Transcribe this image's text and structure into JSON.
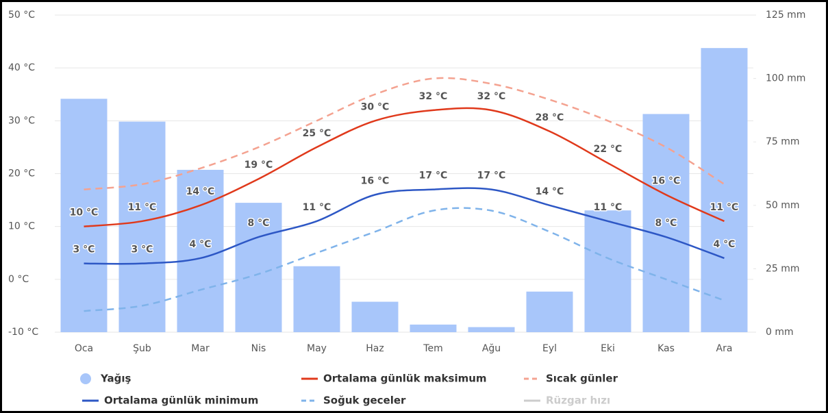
{
  "chart_data": {
    "type": "combo",
    "categories": [
      "Oca",
      "Şub",
      "Mar",
      "Nis",
      "May",
      "Haz",
      "Tem",
      "Ağu",
      "Eyl",
      "Eki",
      "Kas",
      "Ara"
    ],
    "ylim": [
      -10,
      50
    ],
    "yticks": [
      {
        "value": -10,
        "label": "-10 °C"
      },
      {
        "value": 0,
        "label": "0 °C"
      },
      {
        "value": 10,
        "label": "10 °C"
      },
      {
        "value": 20,
        "label": "20 °C"
      },
      {
        "value": 30,
        "label": "30 °C"
      },
      {
        "value": 40,
        "label": "40 °C"
      },
      {
        "value": 50,
        "label": "50 °C"
      }
    ],
    "y2lim": [
      0,
      125
    ],
    "y2ticks": [
      {
        "value": 0,
        "label": "0 mm"
      },
      {
        "value": 25,
        "label": "25 mm"
      },
      {
        "value": 50,
        "label": "50 mm"
      },
      {
        "value": 75,
        "label": "75 mm"
      },
      {
        "value": 100,
        "label": "100 mm"
      },
      {
        "value": 125,
        "label": "125 mm"
      }
    ],
    "grid": true,
    "series": [
      {
        "name": "Yağış",
        "type": "bar",
        "axis": "y2",
        "color": "#a8c6fa",
        "values": [
          92,
          83,
          64,
          51,
          26,
          12,
          3,
          2,
          16,
          48,
          86,
          112
        ]
      },
      {
        "name": "Ortalama günlük maksimum",
        "type": "line",
        "color": "#e0391b",
        "values": [
          10,
          11,
          14,
          19,
          25,
          30,
          32,
          32,
          28,
          22,
          16,
          11
        ],
        "value_labels": [
          "10 °C",
          "11 °C",
          "14 °C",
          "19 °C",
          "25 °C",
          "30 °C",
          "32 °C",
          "32 °C",
          "28 °C",
          "22 °C",
          "16 °C",
          "11 °C"
        ],
        "label_color": "#9b2a10"
      },
      {
        "name": "Sıcak günler",
        "type": "line",
        "dashed": true,
        "color": "#f4a290",
        "values": [
          17,
          18,
          21,
          25,
          30,
          35,
          38,
          37,
          34,
          30,
          25,
          18
        ]
      },
      {
        "name": "Ortalama günlük minimum",
        "type": "line",
        "color": "#2d57c5",
        "values": [
          3,
          3,
          4,
          8,
          11,
          16,
          17,
          17,
          14,
          11,
          8,
          4
        ],
        "value_labels": [
          "3 °C",
          "3 °C",
          "4 °C",
          "8 °C",
          "11 °C",
          "16 °C",
          "17 °C",
          "17 °C",
          "14 °C",
          "11 °C",
          "8 °C",
          "4 °C"
        ],
        "label_color": "#2d57c5"
      },
      {
        "name": "Soğuk geceler",
        "type": "line",
        "dashed": true,
        "color": "#7fb3ea",
        "values": [
          -6,
          -5,
          -2,
          1,
          5,
          9,
          13,
          13,
          9,
          4,
          0,
          -4
        ]
      },
      {
        "name": "Rüzgar hızı",
        "type": "line",
        "visible": false,
        "color": "#cccccc"
      }
    ]
  }
}
